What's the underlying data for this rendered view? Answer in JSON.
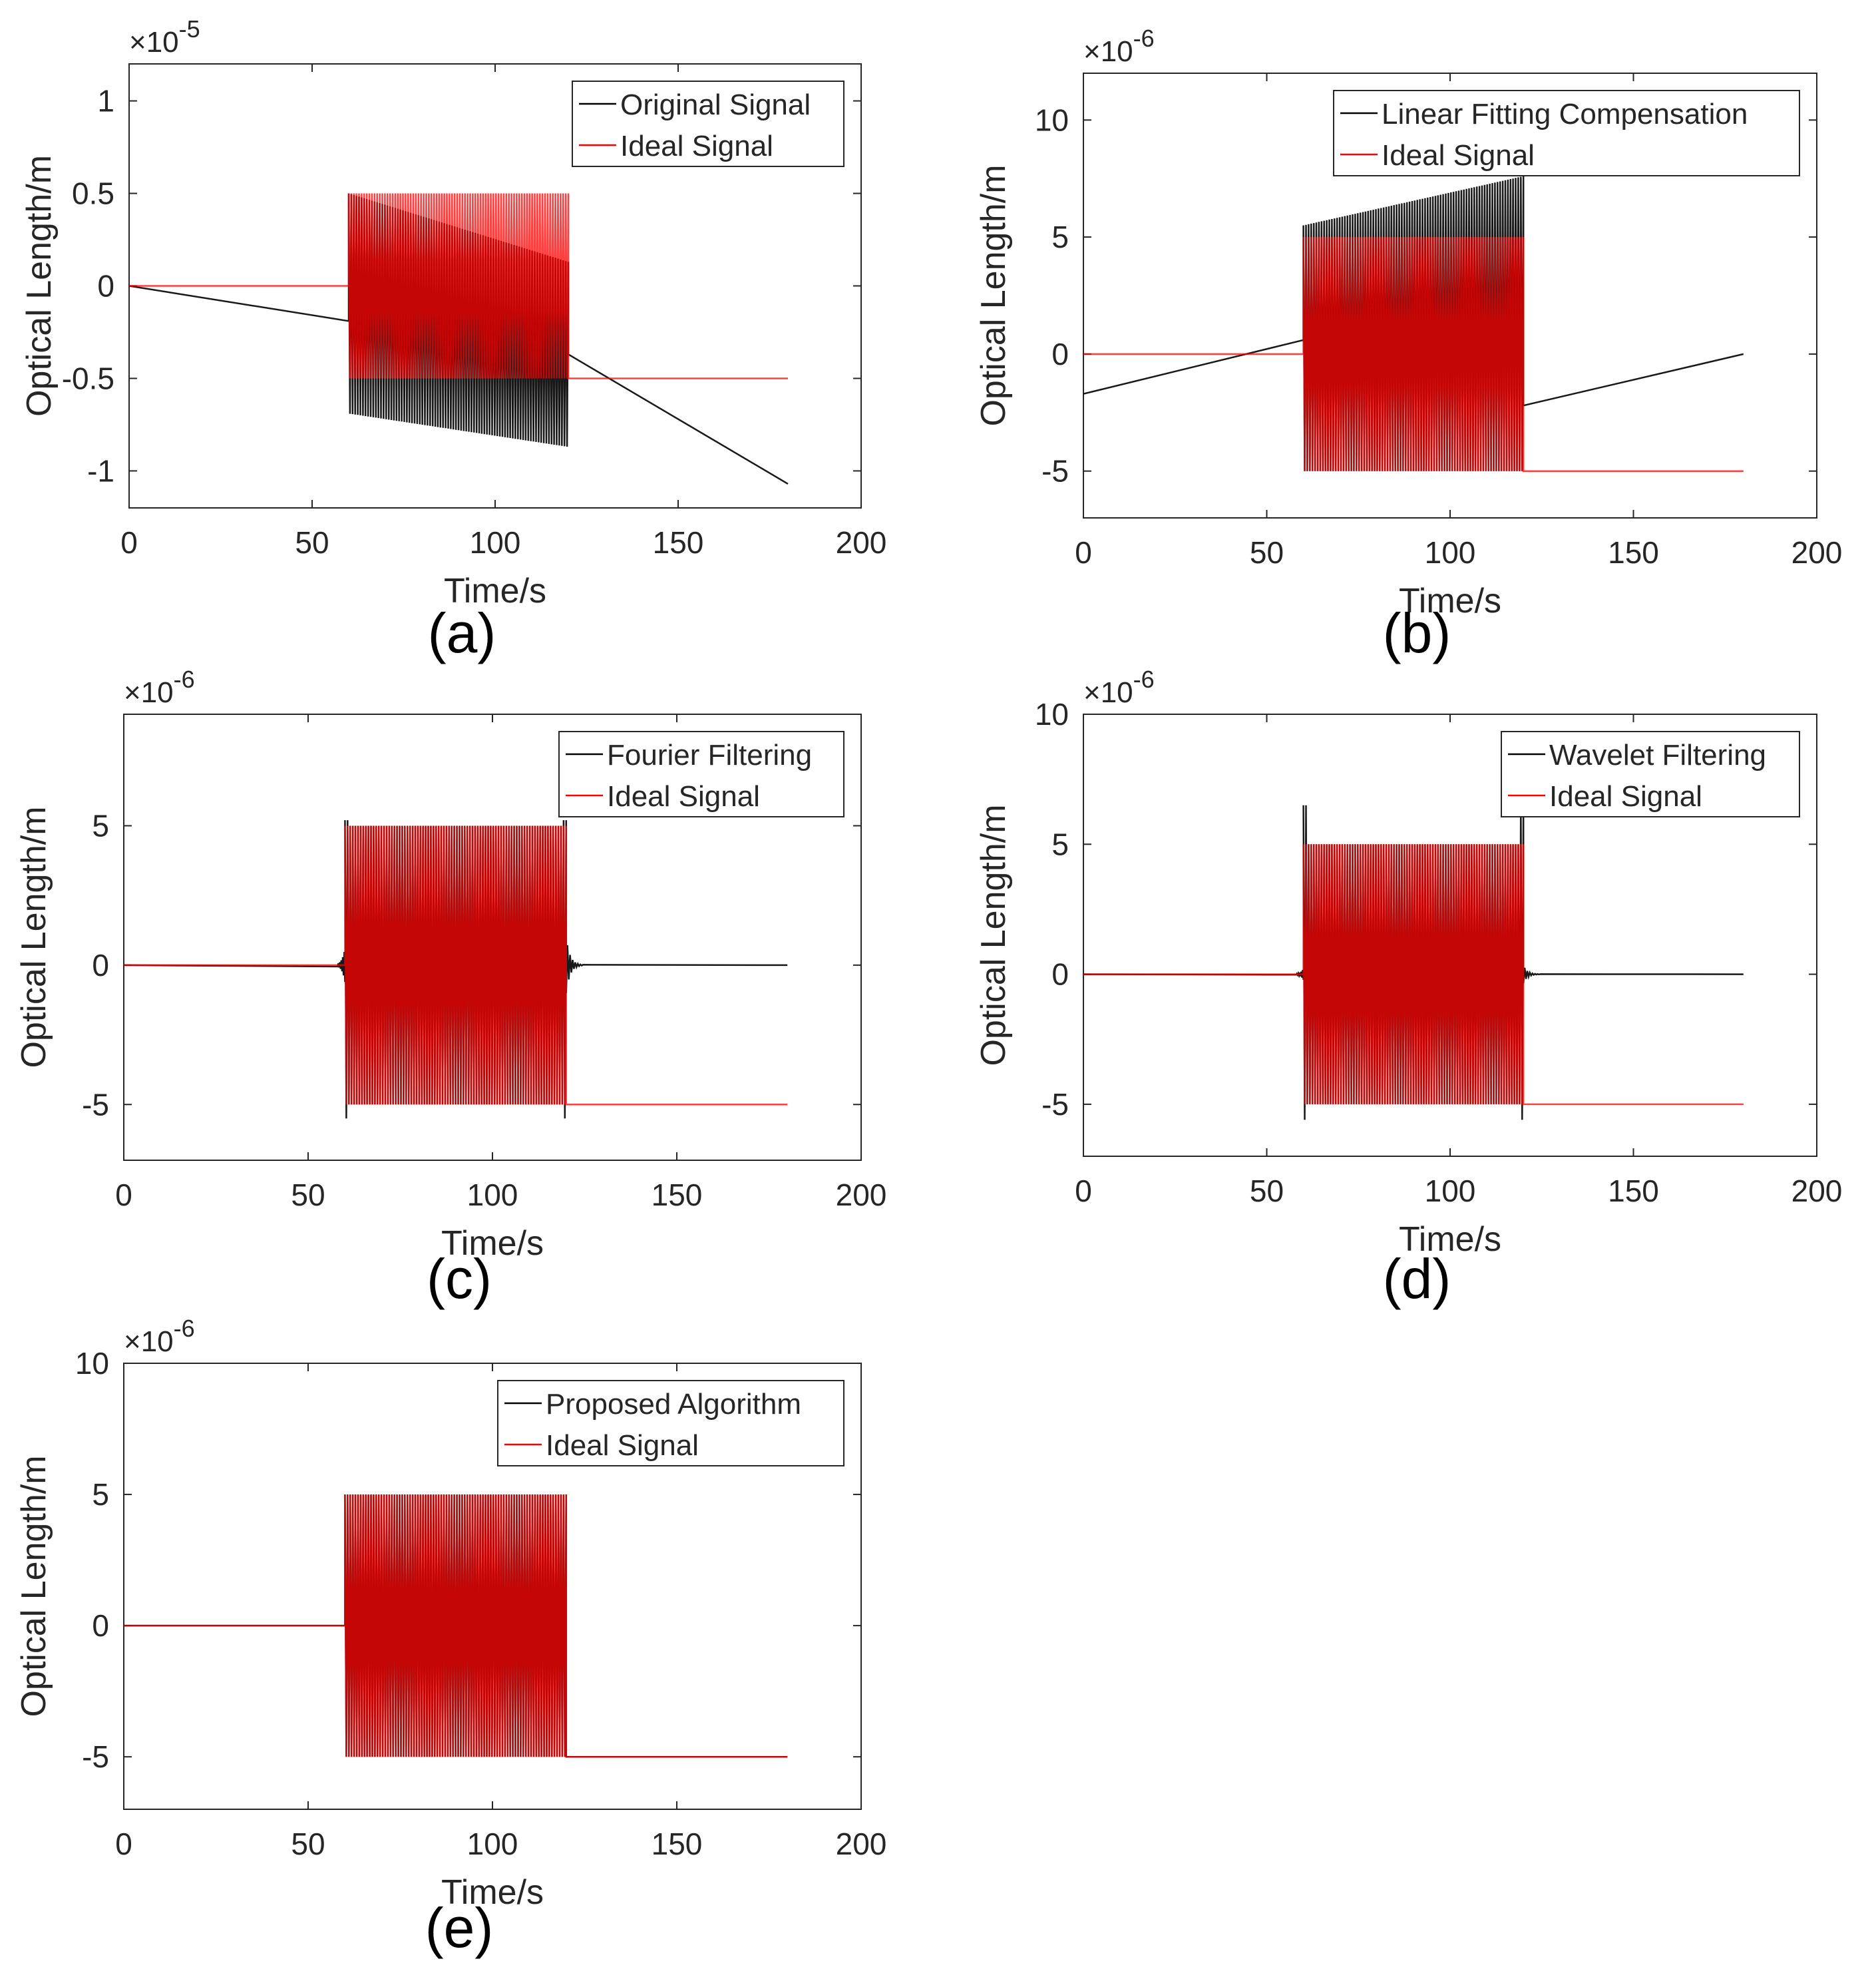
{
  "chart_data": [
    {
      "type": "line",
      "panel_label": "(a)",
      "xlabel": "Time/s",
      "ylabel": "Optical Length/m",
      "y_exponent": "×10",
      "y_exponent_power": "-5",
      "xlim": [
        0,
        200
      ],
      "ylim": [
        -1.2,
        1.2
      ],
      "xticks": [
        0,
        50,
        100,
        150,
        200
      ],
      "xtick_labels": [
        "0",
        "50",
        "100",
        "150",
        "200"
      ],
      "yticks": [
        -1,
        -0.5,
        0,
        0.5,
        1
      ],
      "ytick_labels": [
        "-1",
        "-0.5",
        "0",
        "0.5",
        "1"
      ],
      "legend": [
        "Original Signal",
        "Ideal Signal"
      ],
      "legend_position": "top-right",
      "series": [
        {
          "name": "Original Signal",
          "color": "#000000",
          "kind": "drift",
          "start_value": 0,
          "burst_start_center": -0.19,
          "burst_end_center": -0.37,
          "end_value": -1.07,
          "burst_start_top": 0.5,
          "burst_end_top": 0.13,
          "burst_start_bottom": -0.69,
          "burst_end_bottom": -0.87,
          "burst_x": [
            60,
            120
          ],
          "end_x": 180
        },
        {
          "name": "Ideal Signal",
          "color": "#ff0000",
          "kind": "ideal",
          "pre_value": 0,
          "burst_max": 0.5,
          "burst_min": -0.5,
          "post_value": -0.5,
          "burst_x": [
            60,
            120
          ],
          "end_x": 180
        }
      ]
    },
    {
      "type": "line",
      "panel_label": "(b)",
      "xlabel": "Time/s",
      "ylabel": "Optical Length/m",
      "y_exponent": "×10",
      "y_exponent_power": "-6",
      "xlim": [
        0,
        200
      ],
      "ylim": [
        -7,
        12
      ],
      "xticks": [
        0,
        50,
        100,
        150,
        200
      ],
      "xtick_labels": [
        "0",
        "50",
        "100",
        "150",
        "200"
      ],
      "yticks": [
        -5,
        0,
        5,
        10
      ],
      "ytick_labels": [
        "-5",
        "0",
        "5",
        "10"
      ],
      "legend": [
        "Linear Fitting Compensation",
        "Ideal Signal"
      ],
      "legend_position": "top-right",
      "series": [
        {
          "name": "Linear Fitting Compensation",
          "color": "#000000",
          "kind": "drift",
          "start_value": -1.7,
          "burst_start_center": 0.6,
          "burst_end_center": 2.9,
          "end_value": 0,
          "burst_start_top": 5.5,
          "burst_end_top": 7.6,
          "burst_start_bottom": -5.0,
          "burst_end_bottom": -5.0,
          "post_start_value": -2.2,
          "burst_x": [
            60,
            120
          ],
          "end_x": 180
        },
        {
          "name": "Ideal Signal",
          "color": "#ff0000",
          "kind": "ideal",
          "pre_value": 0,
          "burst_max": 5,
          "burst_min": -5,
          "post_value": -5,
          "burst_x": [
            60,
            120
          ],
          "end_x": 180
        }
      ]
    },
    {
      "type": "line",
      "panel_label": "(c)",
      "xlabel": "Time/s",
      "ylabel": "Optical Length/m",
      "y_exponent": "×10",
      "y_exponent_power": "-6",
      "xlim": [
        0,
        200
      ],
      "ylim": [
        -7,
        9
      ],
      "xticks": [
        0,
        50,
        100,
        150,
        200
      ],
      "xtick_labels": [
        "0",
        "50",
        "100",
        "150",
        "200"
      ],
      "yticks": [
        -5,
        0,
        5
      ],
      "ytick_labels": [
        "-5",
        "0",
        "5"
      ],
      "legend": [
        "Fourier Filtering",
        "Ideal Signal"
      ],
      "legend_position": "top-right",
      "series": [
        {
          "name": "Fourier Filtering",
          "color": "#000000",
          "kind": "filtered",
          "pre_value": 0,
          "burst_max": 5.2,
          "burst_min": -5.5,
          "post_value": 0,
          "ringing": 1.0,
          "burst_x": [
            60,
            120
          ],
          "end_x": 180
        },
        {
          "name": "Ideal Signal",
          "color": "#ff0000",
          "kind": "ideal",
          "pre_value": 0,
          "burst_max": 5,
          "burst_min": -5,
          "post_value": -5,
          "burst_x": [
            60,
            120
          ],
          "end_x": 180
        }
      ]
    },
    {
      "type": "line",
      "panel_label": "(d)",
      "xlabel": "Time/s",
      "ylabel": "Optical Length/m",
      "y_exponent": "×10",
      "y_exponent_power": "-6",
      "xlim": [
        0,
        200
      ],
      "ylim": [
        -7,
        10
      ],
      "xticks": [
        0,
        50,
        100,
        150,
        200
      ],
      "xtick_labels": [
        "0",
        "50",
        "100",
        "150",
        "200"
      ],
      "yticks": [
        -5,
        0,
        5,
        10
      ],
      "ytick_labels": [
        "-5",
        "0",
        "5",
        "10"
      ],
      "legend": [
        "Wavelet Filtering",
        "Ideal Signal"
      ],
      "legend_position": "top-right",
      "series": [
        {
          "name": "Wavelet Filtering",
          "color": "#000000",
          "kind": "filtered",
          "pre_value": 0,
          "burst_max": 6.5,
          "burst_min": -5.6,
          "post_value": 0,
          "ringing": 0.35,
          "burst_x": [
            60,
            120
          ],
          "end_x": 180
        },
        {
          "name": "Ideal Signal",
          "color": "#ff0000",
          "kind": "ideal",
          "pre_value": 0,
          "burst_max": 5,
          "burst_min": -5,
          "post_value": -5,
          "burst_x": [
            60,
            120
          ],
          "end_x": 180
        }
      ]
    },
    {
      "type": "line",
      "panel_label": "(e)",
      "xlabel": "Time/s",
      "ylabel": "Optical Length/m",
      "y_exponent": "×10",
      "y_exponent_power": "-6",
      "xlim": [
        0,
        200
      ],
      "ylim": [
        -7,
        10
      ],
      "xticks": [
        0,
        50,
        100,
        150,
        200
      ],
      "xtick_labels": [
        "0",
        "50",
        "100",
        "150",
        "200"
      ],
      "yticks": [
        -5,
        0,
        5,
        10
      ],
      "ytick_labels": [
        "-5",
        "0",
        "5",
        "10"
      ],
      "legend": [
        "Proposed Algorithm",
        "Ideal Signal"
      ],
      "legend_position": "top-right",
      "series": [
        {
          "name": "Proposed Algorithm",
          "color": "#000000",
          "kind": "ideal",
          "pre_value": 0,
          "burst_max": 5,
          "burst_min": -5,
          "post_value": -5,
          "burst_x": [
            60,
            120
          ],
          "end_x": 180
        },
        {
          "name": "Ideal Signal",
          "color": "#ff0000",
          "kind": "ideal",
          "pre_value": 0,
          "burst_max": 5,
          "burst_min": -5,
          "post_value": -5,
          "burst_x": [
            60,
            120
          ],
          "end_x": 180
        }
      ]
    }
  ]
}
